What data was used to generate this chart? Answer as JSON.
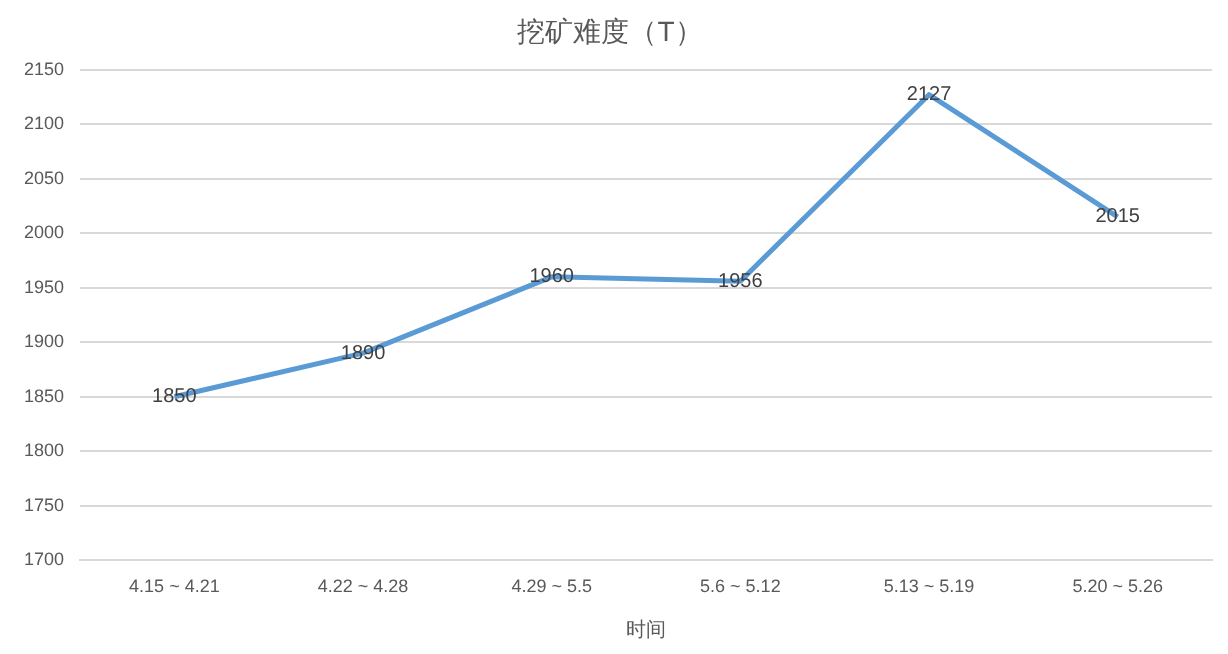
{
  "chart_data": {
    "type": "line",
    "title": "挖矿难度（T）",
    "xlabel": "时间",
    "categories": [
      "4.15 ~ 4.21",
      "4.22 ~ 4.28",
      "4.29 ~ 5.5",
      "5.6 ~ 5.12",
      "5.13 ~ 5.19",
      "5.20 ~ 5.26"
    ],
    "series": [
      {
        "color": "#5b9bd5",
        "values": [
          1850,
          1890,
          1960,
          1956,
          2127,
          2015
        ]
      }
    ],
    "ylim": [
      1700,
      2150
    ],
    "yticks": [
      1700,
      1750,
      1800,
      1850,
      1900,
      1950,
      2000,
      2050,
      2100,
      2150
    ],
    "grid": "y",
    "legend": false,
    "marker": "none",
    "line_style": "solid",
    "data_labels": true
  }
}
